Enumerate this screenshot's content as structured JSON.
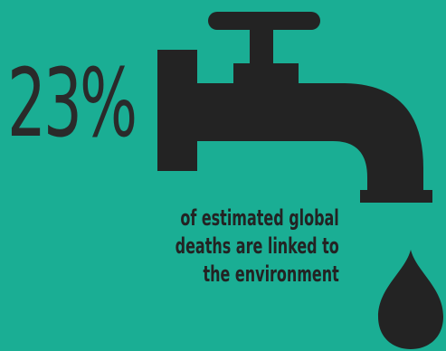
{
  "stat": {
    "value": "23%"
  },
  "caption": {
    "lines": [
      "of estimated global",
      "deaths are linked to",
      "the environment"
    ]
  },
  "icons": {
    "faucet": "faucet-icon",
    "drop": "water-drop-icon"
  },
  "colors": {
    "background": "#1aae94",
    "ink": "#232323"
  }
}
